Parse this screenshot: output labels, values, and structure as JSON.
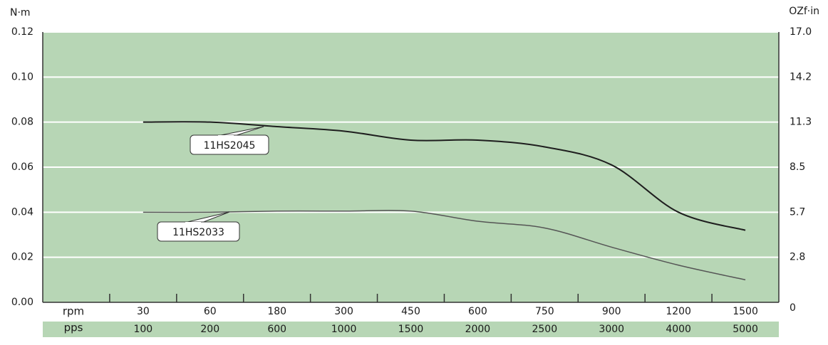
{
  "chart_data": {
    "type": "line",
    "y_label": "N·m",
    "y2_label": "OZf·in",
    "row_labels": [
      "rpm",
      "pps"
    ],
    "categories": [
      "30",
      "60",
      "180",
      "300",
      "450",
      "600",
      "750",
      "900",
      "1200",
      "1500"
    ],
    "categories2": [
      "100",
      "200",
      "600",
      "1000",
      "1500",
      "2000",
      "2500",
      "3000",
      "4000",
      "5000"
    ],
    "ylim": [
      0,
      0.12
    ],
    "yticks": [
      {
        "value": 0,
        "label": "0.00"
      },
      {
        "value": 0.02,
        "label": "0.02"
      },
      {
        "value": 0.04,
        "label": "0.04"
      },
      {
        "value": 0.06,
        "label": "0.06"
      },
      {
        "value": 0.08,
        "label": "0.08"
      },
      {
        "value": 0.1,
        "label": "0.10"
      },
      {
        "value": 0.12,
        "label": "0.12"
      }
    ],
    "y2lim": [
      0,
      17
    ],
    "y2ticks": [
      0,
      {
        "value": 2.833,
        "label": "2.8"
      },
      {
        "value": 5.667,
        "label": "5.7"
      },
      8.5,
      {
        "value": 11.333,
        "label": "11.3"
      },
      {
        "value": 14.167,
        "label": "14.2"
      },
      {
        "value": 17,
        "label": "17.0"
      }
    ],
    "grid": true,
    "background": "#b7d6b5",
    "series": [
      {
        "name": "11HS2045",
        "color": "#1e1e1e",
        "values": [
          0.08,
          0.08,
          0.078,
          0.076,
          0.072,
          0.072,
          0.069,
          0.061,
          0.04,
          0.032
        ]
      },
      {
        "name": "11HS2033",
        "color": "#555555",
        "values": [
          0.04,
          0.04,
          0.0405,
          0.0405,
          0.0405,
          0.036,
          0.033,
          0.0245,
          0.0165,
          0.01
        ]
      }
    ]
  }
}
